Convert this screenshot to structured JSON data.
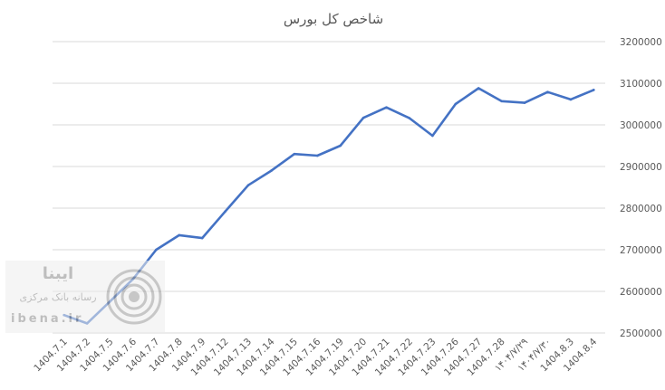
{
  "chart_data": {
    "type": "line",
    "title": "شاخص کل بورس",
    "categories": [
      "1404.7.1",
      "1404.7.2",
      "1404.7.5",
      "1404.7.6",
      "1404.7.7",
      "1404.7.8",
      "1404.7.9",
      "1404.7.12",
      "1404.7.13",
      "1404.7.14",
      "1404.7.15",
      "1404.7.16",
      "1404.7.19",
      "1404.7.20",
      "1404.7.21",
      "1404.7.22",
      "1404.7.23",
      "1404.7.26",
      "1404.7.27",
      "1404.7.28",
      "۱۴۰۴/۷/۲۹",
      "۱۴۰۴/۷/۳۰",
      "1404.8.3",
      "1404.8.4"
    ],
    "series": [
      {
        "values": [
          2543000,
          2523000,
          2576000,
          2630000,
          2700000,
          2735000,
          2728000,
          2792000,
          2855000,
          2890000,
          2930000,
          2926000,
          2950000,
          3017000,
          3042000,
          3016000,
          2974000,
          3050000,
          3088000,
          3057000,
          3053000,
          3079000,
          3061000,
          3084000
        ]
      }
    ],
    "y_ticks": [
      "2500000",
      "2600000",
      "2700000",
      "2800000",
      "2900000",
      "3000000",
      "3100000",
      "3200000"
    ],
    "ylim": [
      2500000,
      3200000
    ],
    "grid": true,
    "legend": "none",
    "y_axis_side": "right",
    "line_color": "#4472c4"
  },
  "watermark": {
    "brand": "ایبنا",
    "subtitle": "رسانه بانک مرکزی",
    "site": "ibena.ir"
  }
}
